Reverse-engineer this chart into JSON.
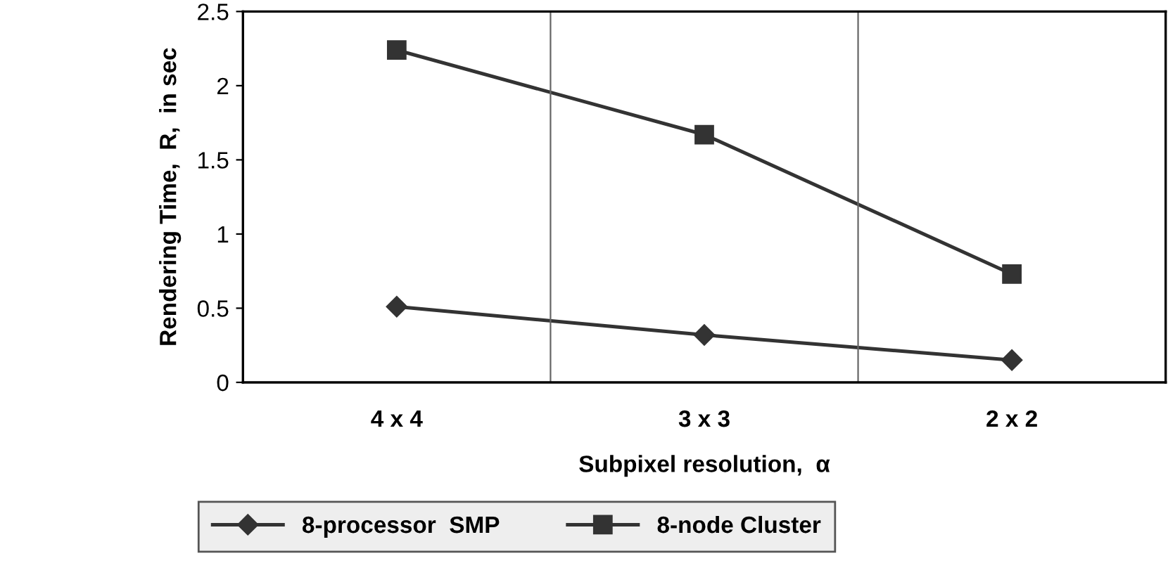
{
  "chart_data": {
    "type": "line",
    "xlabel": "Subpixel resolution,  α",
    "ylabel": "Rendering Time,  R,  in sec",
    "categories": [
      "4 x 4",
      "3 x 3",
      "2 x 2"
    ],
    "series": [
      {
        "name": "8-processor  SMP",
        "color": "#333333",
        "marker": "diamond",
        "values": [
          0.51,
          0.32,
          0.15
        ]
      },
      {
        "name": "8-node Cluster",
        "color": "#333333",
        "marker": "square",
        "values": [
          2.24,
          1.67,
          0.73
        ]
      }
    ],
    "ylim": [
      0,
      2.5
    ],
    "yticks": [
      0,
      0.5,
      1,
      1.5,
      2,
      2.5
    ],
    "grid": "x",
    "legend": "bottom",
    "line_style": "solid"
  }
}
